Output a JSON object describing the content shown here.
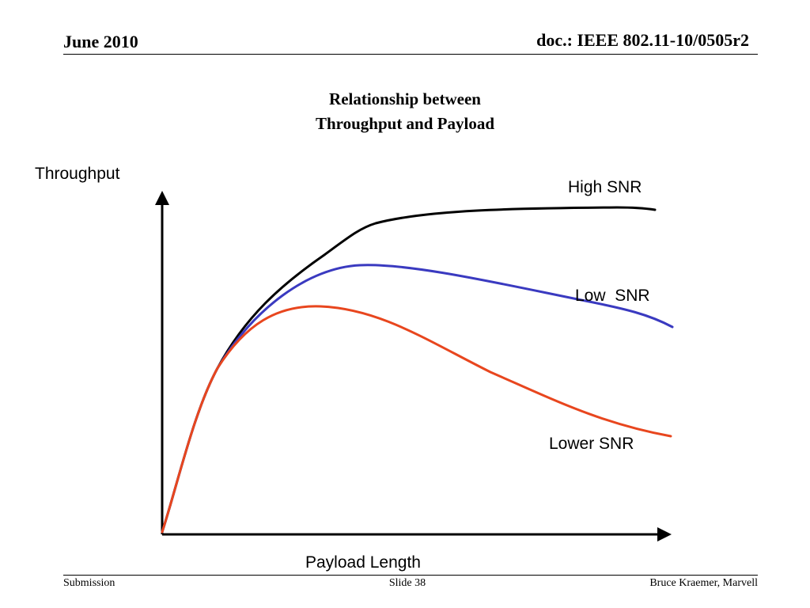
{
  "header": {
    "date": "June 2010",
    "doc_id": "doc.: IEEE 802.11-10/0505r2"
  },
  "slide_title": {
    "line1": "Relationship between",
    "line2": "Throughput and Payload"
  },
  "diagram": {
    "y_axis_label": "Throughput",
    "x_axis_label": "Payload Length",
    "curves": [
      {
        "name": "High SNR",
        "color": "#000000"
      },
      {
        "name": "Low  SNR",
        "color": "#3a3ac0"
      },
      {
        "name": "Lower SNR",
        "color": "#e8461e"
      }
    ]
  },
  "footer": {
    "left": "Submission",
    "center": "Slide 38",
    "right": "Bruce Kraemer, Marvell"
  }
}
